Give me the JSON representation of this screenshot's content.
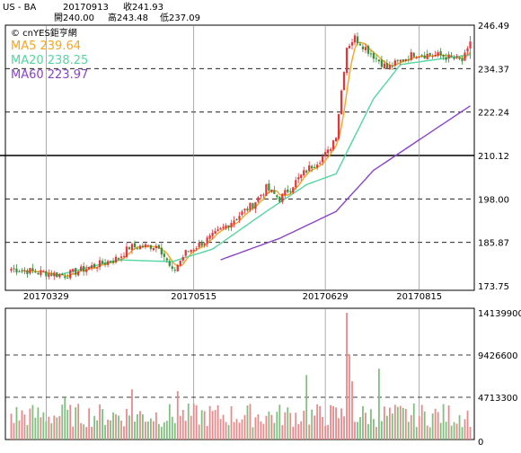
{
  "header": {
    "symbol": "US - BA",
    "date": "20170913",
    "close_label": "收241.93",
    "open_label": "開240.00",
    "high_label": "高243.48",
    "low_label": "低237.09"
  },
  "legend": {
    "source": "© cnYES鉅亨網",
    "ma5": "MA5 239.64",
    "ma20": "MA20 238.25",
    "ma60": "MA60 223.97"
  },
  "colors": {
    "up": "#e0383c",
    "down": "#3a8f3a",
    "ma5": "#f5a623",
    "ma20": "#55d6a0",
    "ma60": "#8a44c8",
    "grid": "#000000",
    "background": "#ffffff"
  },
  "chart_data": [
    {
      "type": "candlestick",
      "price_axis_ticks": [
        "246.49",
        "234.37",
        "222.24",
        "210.12",
        "198.00",
        "185.87",
        "173.75"
      ],
      "ylim": [
        173.75,
        246.49
      ],
      "date_labels": [
        "20170329",
        "20170515",
        "20170629",
        "20170815"
      ],
      "trend_anchors": [
        {
          "idx": 0,
          "close": 178.5
        },
        {
          "idx": 20,
          "close": 176.7
        },
        {
          "idx": 40,
          "close": 181.5
        },
        {
          "idx": 44,
          "close": 184.5
        },
        {
          "idx": 55,
          "close": 185.0
        },
        {
          "idx": 60,
          "close": 177.5
        },
        {
          "idx": 65,
          "close": 183.0
        },
        {
          "idx": 75,
          "close": 187.5
        },
        {
          "idx": 90,
          "close": 196.5
        },
        {
          "idx": 95,
          "close": 201.0
        },
        {
          "idx": 100,
          "close": 198.0
        },
        {
          "idx": 110,
          "close": 206.0
        },
        {
          "idx": 118,
          "close": 211.0
        },
        {
          "idx": 121,
          "close": 216.0
        },
        {
          "idx": 125,
          "close": 240.5
        },
        {
          "idx": 128,
          "close": 243.0
        },
        {
          "idx": 135,
          "close": 238.0
        },
        {
          "idx": 140,
          "close": 234.5
        },
        {
          "idx": 150,
          "close": 238.5
        },
        {
          "idx": 160,
          "close": 238.0
        },
        {
          "idx": 168,
          "close": 236.5
        },
        {
          "idx": 171,
          "close": 240.5
        }
      ],
      "ma_anchors": {
        "ma20": [
          {
            "idx": 16,
            "value": 176.5
          },
          {
            "idx": 40,
            "value": 181.0
          },
          {
            "idx": 60,
            "value": 180.5
          },
          {
            "idx": 75,
            "value": 184.0
          },
          {
            "idx": 95,
            "value": 194.5
          },
          {
            "idx": 110,
            "value": 202.0
          },
          {
            "idx": 121,
            "value": 205.0
          },
          {
            "idx": 135,
            "value": 226.0
          },
          {
            "idx": 145,
            "value": 235.5
          },
          {
            "idx": 171,
            "value": 238.25
          }
        ],
        "ma60": [
          {
            "idx": 78,
            "value": 181.0
          },
          {
            "idx": 100,
            "value": 187.0
          },
          {
            "idx": 121,
            "value": 194.5
          },
          {
            "idx": 135,
            "value": 206.0
          },
          {
            "idx": 150,
            "value": 213.5
          },
          {
            "idx": 171,
            "value": 223.97
          }
        ]
      },
      "last_bar": {
        "open": 240.0,
        "high": 243.48,
        "low": 237.09,
        "close": 241.93
      },
      "moving_averages": {
        "MA5": 239.64,
        "MA20": 238.25,
        "MA60": 223.97
      }
    },
    {
      "type": "bar",
      "label": "volume",
      "volume_axis_ticks": [
        "14139900",
        "9426600",
        "4713300",
        "0"
      ],
      "ylim": [
        0,
        14139900
      ],
      "volume_baseline": 3000000,
      "volume_spikes": [
        {
          "idx": 62,
          "value": 5400000
        },
        {
          "idx": 110,
          "value": 7200000
        },
        {
          "idx": 125,
          "value": 14139900
        },
        {
          "idx": 126,
          "value": 9500000
        },
        {
          "idx": 127,
          "value": 6500000
        },
        {
          "idx": 137,
          "value": 7900000
        },
        {
          "idx": 20,
          "value": 4700000
        },
        {
          "idx": 45,
          "value": 5600000
        }
      ]
    }
  ]
}
